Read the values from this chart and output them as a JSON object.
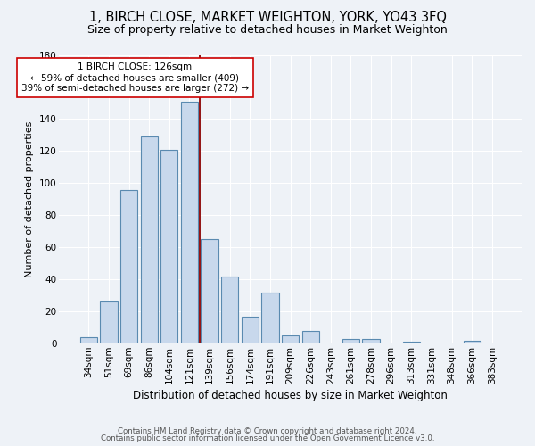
{
  "title": "1, BIRCH CLOSE, MARKET WEIGHTON, YORK, YO43 3FQ",
  "subtitle": "Size of property relative to detached houses in Market Weighton",
  "xlabel": "Distribution of detached houses by size in Market Weighton",
  "ylabel": "Number of detached properties",
  "categories": [
    "34sqm",
    "51sqm",
    "69sqm",
    "86sqm",
    "104sqm",
    "121sqm",
    "139sqm",
    "156sqm",
    "174sqm",
    "191sqm",
    "209sqm",
    "226sqm",
    "243sqm",
    "261sqm",
    "278sqm",
    "296sqm",
    "313sqm",
    "331sqm",
    "348sqm",
    "366sqm",
    "383sqm"
  ],
  "values": [
    4,
    26,
    96,
    129,
    121,
    151,
    65,
    42,
    17,
    32,
    5,
    8,
    0,
    3,
    3,
    0,
    1,
    0,
    0,
    2,
    0
  ],
  "bar_color": "#c8d8ec",
  "bar_edge_color": "#5a8ab0",
  "vline_x": 5.5,
  "vline_color": "#8b0000",
  "ylim": [
    0,
    180
  ],
  "yticks": [
    0,
    20,
    40,
    60,
    80,
    100,
    120,
    140,
    160,
    180
  ],
  "annotation_text": "1 BIRCH CLOSE: 126sqm\n← 59% of detached houses are smaller (409)\n39% of semi-detached houses are larger (272) →",
  "annotation_box_color": "#ffffff",
  "annotation_box_edge": "#cc0000",
  "footer1": "Contains HM Land Registry data © Crown copyright and database right 2024.",
  "footer2": "Contains public sector information licensed under the Open Government Licence v3.0.",
  "bg_color": "#eef2f7",
  "grid_color": "#ffffff",
  "title_fontsize": 10.5,
  "subtitle_fontsize": 9,
  "tick_fontsize": 7.5,
  "ylabel_fontsize": 8,
  "xlabel_fontsize": 8.5
}
